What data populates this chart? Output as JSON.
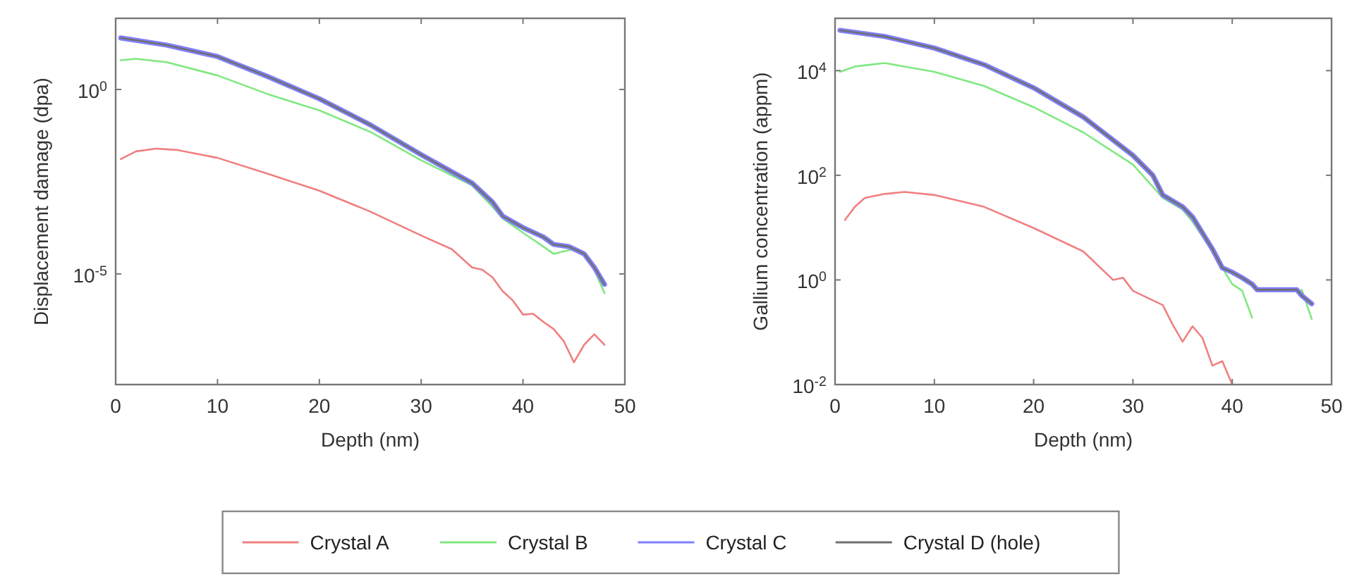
{
  "chart_data": [
    {
      "type": "line",
      "xlabel": "Depth (nm)",
      "ylabel": "Displacement damage (dpa)",
      "log": "y",
      "xlim": [
        0,
        50
      ],
      "xticks": [
        0,
        10,
        20,
        30,
        40,
        50
      ],
      "ylim": [
        1e-08,
        85
      ],
      "yticks": [
        {
          "value": 1,
          "label": "10$^{0}$"
        },
        {
          "value": 1e-05,
          "label": "10$^{-5}$"
        }
      ],
      "legend": "bottom",
      "grid": false,
      "series": [
        {
          "name": "Crystal A",
          "color": "#f08080",
          "x": [
            0.5,
            2,
            4,
            6,
            10,
            15,
            20,
            25,
            30,
            33,
            35,
            36,
            37,
            38,
            39,
            40,
            41,
            42,
            43,
            44,
            45,
            46,
            47,
            48
          ],
          "values": [
            0.013,
            0.021,
            0.025,
            0.023,
            0.014,
            0.0051,
            0.0018,
            0.00049,
            0.00011,
            4.7e-05,
            1.5e-05,
            1.3e-05,
            8.1e-06,
            3.4e-06,
            1.9e-06,
            7.9e-07,
            8.3e-07,
            5e-07,
            3.2e-07,
            1.5e-07,
            4e-08,
            1.2e-07,
            2.3e-07,
            1.2e-07
          ]
        },
        {
          "name": "Crystal B",
          "color": "#80e880",
          "x": [
            0.5,
            2,
            5,
            10,
            15,
            20,
            25,
            30,
            35,
            37,
            38,
            40,
            42,
            43,
            44,
            45,
            46,
            47,
            48
          ],
          "values": [
            6.2,
            6.8,
            5.5,
            2.4,
            0.74,
            0.27,
            0.071,
            0.012,
            0.0025,
            0.00066,
            0.00032,
            0.00013,
            5.5e-05,
            3.5e-05,
            4.1e-05,
            4.7e-05,
            3.5e-05,
            1.3e-05,
            3e-06
          ]
        },
        {
          "name": "Crystal C",
          "color": "#8080ff",
          "x": [
            0.5,
            5,
            10,
            15,
            20,
            25,
            30,
            35,
            37,
            38,
            40,
            42,
            43,
            44.5,
            46,
            47,
            48
          ],
          "values": [
            25,
            16,
            7.8,
            2.2,
            0.56,
            0.11,
            0.017,
            0.0029,
            0.00089,
            0.00037,
            0.00018,
            0.0001,
            6.3e-05,
            5.5e-05,
            3.5e-05,
            1.5e-05,
            5.2e-06
          ]
        },
        {
          "name": "Crystal D (hole)",
          "color": "#707070",
          "x": [
            0.5,
            5,
            10,
            15,
            20,
            25,
            30,
            35,
            37,
            38,
            40,
            42,
            43,
            44.5,
            46,
            47,
            48
          ],
          "values": [
            25,
            16,
            7.8,
            2.2,
            0.56,
            0.11,
            0.017,
            0.0029,
            0.00089,
            0.00037,
            0.00018,
            0.0001,
            6.3e-05,
            5.5e-05,
            3.5e-05,
            1.5e-05,
            5.2e-06
          ]
        }
      ]
    },
    {
      "type": "line",
      "xlabel": "Depth (nm)",
      "ylabel": "Gallium concentration (appm)",
      "log": "y",
      "xlim": [
        0,
        50
      ],
      "xticks": [
        0,
        10,
        20,
        30,
        40,
        50
      ],
      "ylim": [
        0.01,
        100000
      ],
      "yticks": [
        {
          "value": 0.01,
          "label": "10$^{-2}$"
        },
        {
          "value": 1,
          "label": "10$^{0}$"
        },
        {
          "value": 100,
          "label": "10$^{2}$"
        },
        {
          "value": 10000,
          "label": "10$^{4}$"
        }
      ],
      "legend": "bottom",
      "grid": false,
      "series": [
        {
          "name": "Crystal A",
          "color": "#f08080",
          "x": [
            1,
            2,
            3,
            5,
            7,
            10,
            15,
            20,
            25,
            28,
            29,
            30,
            33,
            34,
            35,
            36,
            37,
            38,
            39,
            40
          ],
          "values": [
            14,
            25,
            37,
            44,
            48,
            42,
            25,
            9.8,
            3.5,
            1.0,
            1.1,
            0.62,
            0.33,
            0.14,
            0.066,
            0.13,
            0.078,
            0.023,
            0.028,
            0.01
          ]
        },
        {
          "name": "Crystal B",
          "color": "#80e880",
          "x": [
            0.5,
            2,
            5,
            10,
            15,
            20,
            25,
            30,
            33,
            35,
            36,
            38,
            39,
            40,
            41,
            42,
            42.5,
            46.5,
            47,
            48
          ],
          "values": [
            9500,
            12000,
            14000,
            9500,
            5100,
            2000,
            660,
            160,
            37,
            22,
            13,
            3.5,
            1.7,
            0.83,
            0.62,
            0.19,
            null,
            null,
            0.65,
            0.18
          ]
        },
        {
          "name": "Crystal C",
          "color": "#8080ff",
          "x": [
            0.5,
            5,
            10,
            15,
            20,
            25,
            30,
            32,
            33,
            35,
            36,
            38,
            39,
            40,
            41,
            42,
            42.5,
            46.5,
            47,
            48
          ],
          "values": [
            59000,
            45000,
            27000,
            13000,
            4700,
            1300,
            240,
            100,
            42,
            25,
            16,
            3.9,
            1.7,
            1.4,
            1.1,
            0.83,
            0.65,
            0.65,
            0.5,
            0.35
          ]
        },
        {
          "name": "Crystal D (hole)",
          "color": "#707070",
          "x": [
            0.5,
            5,
            10,
            15,
            20,
            25,
            30,
            32,
            33,
            35,
            36,
            38,
            39,
            40,
            41,
            42,
            42.5,
            46.5,
            47,
            48
          ],
          "values": [
            59000,
            45000,
            27000,
            13000,
            4700,
            1300,
            240,
            100,
            42,
            25,
            16,
            3.9,
            1.7,
            1.4,
            1.1,
            0.83,
            0.65,
            0.65,
            0.5,
            0.35
          ]
        }
      ]
    }
  ]
}
